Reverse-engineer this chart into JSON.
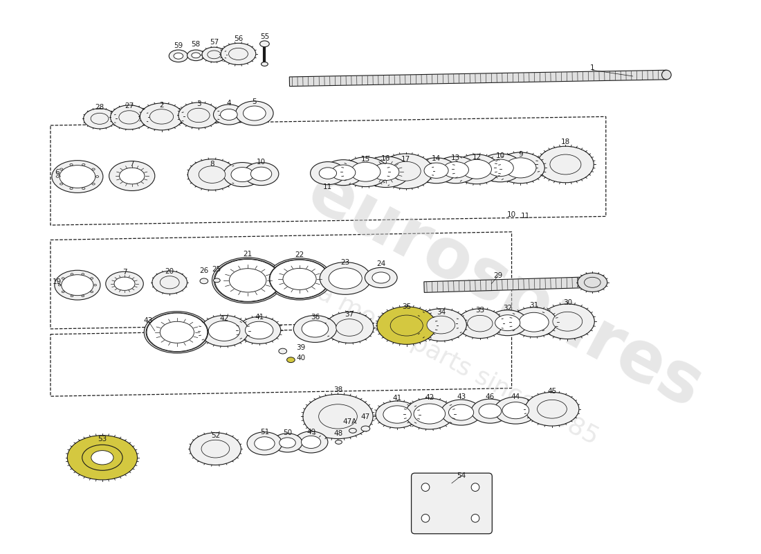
{
  "bg_color": "#ffffff",
  "line_color": "#1a1a1a",
  "gear_fill": "#f0f0f0",
  "shaft_fill": "#e0e0e0",
  "highlight_fill": "#d4c840",
  "watermark_text": "eurospares",
  "watermark_sub": "a motor parts since 1985",
  "figsize": [
    11.0,
    8.0
  ],
  "dpi": 100
}
